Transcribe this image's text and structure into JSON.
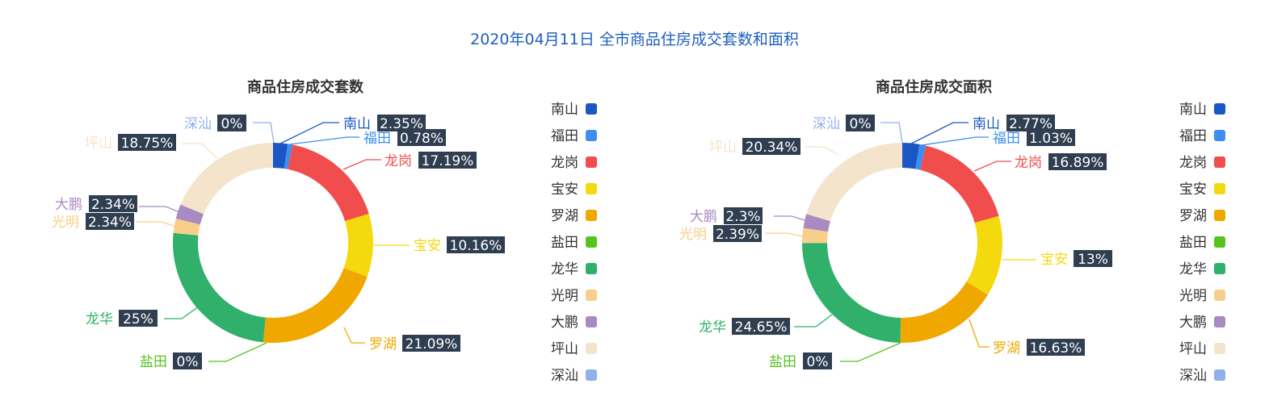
{
  "title": "2020年04月11日 全市商品住房成交套数和面积",
  "colors": {
    "南山": "#1a56c4",
    "福田": "#3d8ef0",
    "龙岗": "#f24d4d",
    "宝安": "#f5d90f",
    "罗湖": "#f0a800",
    "盐田": "#55c41c",
    "龙华": "#30b06a",
    "光明": "#f7cf8a",
    "大鹏": "#a88bc2",
    "坪山": "#f5e4cc",
    "深汕": "#8fb0e8"
  },
  "label_box_color": "#2f3e50",
  "chart_data": [
    {
      "type": "pie",
      "title": "商品住房成交套数",
      "categories": [
        "南山",
        "福田",
        "龙岗",
        "宝安",
        "罗湖",
        "盐田",
        "龙华",
        "光明",
        "大鹏",
        "坪山",
        "深汕"
      ],
      "values": [
        2.35,
        0.78,
        17.19,
        10.16,
        21.09,
        0,
        25,
        2.34,
        2.34,
        18.75,
        0
      ],
      "labels": [
        "2.35%",
        "0.78%",
        "17.19%",
        "10.16%",
        "21.09%",
        "0%",
        "25%",
        "2.34%",
        "2.34%",
        "18.75%",
        "0%"
      ],
      "legend": [
        "南山",
        "福田",
        "龙岗",
        "宝安",
        "罗湖",
        "盐田",
        "龙华",
        "光明",
        "大鹏",
        "坪山",
        "深汕"
      ]
    },
    {
      "type": "pie",
      "title": "商品住房成交面积",
      "categories": [
        "南山",
        "福田",
        "龙岗",
        "宝安",
        "罗湖",
        "盐田",
        "龙华",
        "光明",
        "大鹏",
        "坪山",
        "深汕"
      ],
      "values": [
        2.77,
        1.03,
        16.89,
        13,
        16.63,
        0,
        24.65,
        2.39,
        2.3,
        20.34,
        0
      ],
      "labels": [
        "2.77%",
        "1.03%",
        "16.89%",
        "13%",
        "16.63%",
        "0%",
        "24.65%",
        "2.39%",
        "2.3%",
        "20.34%",
        "0%"
      ],
      "legend": [
        "南山",
        "福田",
        "龙岗",
        "宝安",
        "罗湖",
        "盐田",
        "龙华",
        "光明",
        "大鹏",
        "坪山",
        "深汕"
      ]
    }
  ]
}
